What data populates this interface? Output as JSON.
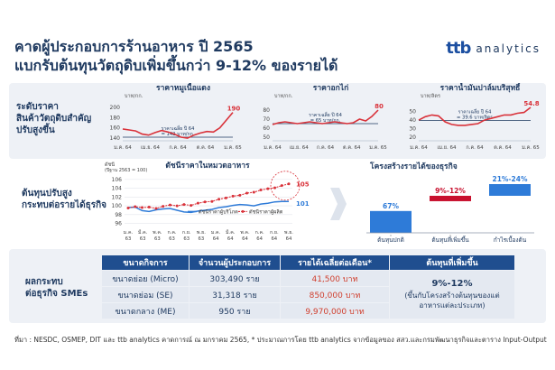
{
  "header": {
    "title_line1": "คาดผู้ประกอบการร้านอาหาร ปี 2565",
    "title_line2": "แบกรับต้นทุนวัตถุดิบเพิ่มขึ้นกว่า 9-12% ของรายได้",
    "logo_text": "ttb",
    "logo_word": "analytics"
  },
  "section1": {
    "label_lines": [
      "ระดับราคา",
      "สินค้าวัตถุดิบสำคัญ",
      "ปรับสูงขึ้น"
    ]
  },
  "section2": {
    "label_lines": [
      "ต้นทุนปรับสูง",
      "กระทบต่อรายได้ธุรกิจ"
    ]
  },
  "section3": {
    "label_lines": [
      "ผลกระทบ",
      "ต่อธุรกิจ SMEs"
    ]
  },
  "colors": {
    "red": "#d9323a",
    "blue": "#2e7bd8",
    "navy": "#1f4e8f",
    "band": "#eef1f6"
  },
  "chart_data": [
    {
      "type": "line",
      "title": "ราคาหมูเนื้อแดง",
      "unit": "บาท/กก.",
      "x_ticks": [
        "ม.ค. 64",
        "เม.ย. 64",
        "ก.ค. 64",
        "ต.ค. 64",
        "ม.ค. 65"
      ],
      "y_ticks": [
        140,
        160,
        180,
        200
      ],
      "ylim": [
        135,
        205
      ],
      "values": [
        158,
        156,
        154,
        148,
        146,
        151,
        155,
        152,
        148,
        142,
        140,
        146,
        150,
        153,
        152,
        160,
        175,
        190
      ],
      "end_label": "190",
      "ref_line": {
        "value": 142,
        "label_lines": [
          "ราคาเฉลี่ย ปี 64",
          "= 142 บาท/กก."
        ]
      }
    },
    {
      "type": "line",
      "title": "ราคาอกไก่",
      "unit": "บาท/กก.",
      "x_ticks": [
        "ม.ค. 64",
        "เม.ย. 64",
        "ก.ค. 64",
        "ต.ค. 64",
        "ม.ค. 65"
      ],
      "y_ticks": [
        50,
        60,
        70,
        80
      ],
      "ylim": [
        46,
        86
      ],
      "values": [
        64,
        66,
        67,
        66,
        65,
        66,
        67,
        66,
        65,
        66,
        67,
        66,
        65,
        66,
        70,
        68,
        73,
        80
      ],
      "end_label": "80",
      "ref_line": {
        "value": 65,
        "label_lines": [
          "ราคาเฉลี่ย ปี 64",
          "= 65 บาท/กก."
        ]
      }
    },
    {
      "type": "line",
      "title": "ราคาน้ำมันปาล์มบริสุทธิ์",
      "unit": "บาท/ลิตร",
      "x_ticks": [
        "ม.ค. 64",
        "เม.ย. 64",
        "ก.ค. 64",
        "ต.ค. 64",
        "ม.ค. 65"
      ],
      "y_ticks": [
        20,
        30,
        40,
        50
      ],
      "ylim": [
        16,
        58
      ],
      "values": [
        40,
        44,
        46,
        45,
        38,
        35,
        34,
        34,
        35,
        36,
        40,
        42,
        44,
        46,
        46,
        48,
        49,
        54.8
      ],
      "end_label": "54.8",
      "ref_line": {
        "value": 39.6,
        "label_lines": [
          "ราคาเฉลี่ย ปี 64",
          "= 39.6 บาท/ลิตร"
        ]
      }
    },
    {
      "type": "line",
      "title": "ดัชนีราคาในหมวดอาหาร",
      "y_axis_caption": [
        "ดัชนี",
        "(ปีฐาน 2563 = 100)"
      ],
      "x_ticks": [
        "ม.ค. 63",
        "มี.ค. 63",
        "พ.ค. 63",
        "ก.ค. 63",
        "ก.ย. 63",
        "พ.ย. 63",
        "ม.ค. 64",
        "มี.ค. 64",
        "พ.ค. 64",
        "ก.ค. 64",
        "ก.ย. 64",
        "พ.ย. 64"
      ],
      "y_ticks": [
        96,
        98,
        100,
        102,
        104,
        106
      ],
      "ylim": [
        95.5,
        107
      ],
      "series": [
        {
          "name": "ดัชนีราคาผู้บริโภค",
          "color": "#2e7bd8",
          "values": [
            99.6,
            99.7,
            98.9,
            98.7,
            99.1,
            99.3,
            99.4,
            99.0,
            98.6,
            98.5,
            98.8,
            99.0,
            99.2,
            99.6,
            99.8,
            100.1,
            100.3,
            100.2,
            100.0,
            100.4,
            100.6,
            100.9,
            101.0,
            101.0
          ]
        },
        {
          "name": "ดัชนีราคาผู้ผลิต",
          "color": "#d9323a",
          "values": [
            99.5,
            99.8,
            99.6,
            99.7,
            99.4,
            99.9,
            100.2,
            100.0,
            100.3,
            100.1,
            100.6,
            100.9,
            101.0,
            101.5,
            101.8,
            102.2,
            102.4,
            102.9,
            103.1,
            103.6,
            103.9,
            104.1,
            104.6,
            105.0
          ]
        }
      ],
      "end_labels": [
        "101",
        "105"
      ]
    },
    {
      "type": "bar",
      "title": "โครงสร้างรายได้ของธุรกิจ",
      "categories": [
        "ต้นทุนปกติ",
        "ต้นทุนที่เพิ่มขึ้น",
        "กำไรเบื้องต้น"
      ],
      "value_labels": [
        "67%",
        "9%-12%",
        "21%-24%"
      ],
      "start": [
        0,
        67,
        76
      ],
      "end": [
        67,
        76,
        100
      ],
      "colors": [
        "#2e7bd8",
        "#c8102e",
        "#2e7bd8"
      ]
    }
  ],
  "table": {
    "headers": [
      "ขนาดกิจการ",
      "จำนวนผู้ประกอบการ",
      "รายได้เฉลี่ยต่อเดือน*",
      "ต้นทุนที่เพิ่มขึ้น"
    ],
    "rows": [
      [
        "ขนาดย่อย (Micro)",
        "303,490 ราย",
        "41,500 บาท"
      ],
      [
        "ขนาดย่อม (SE)",
        "31,318 ราย",
        "850,000 บาท"
      ],
      [
        "ขนาดกลาง (ME)",
        "950 ราย",
        "9,970,000 บาท"
      ]
    ],
    "merged_value": "9%-12%",
    "merged_note_lines": [
      "(ขึ้นกับโครงสร้างต้นทุนของแต่",
      "อาหารแต่ละประเภท)"
    ]
  },
  "source": "ที่มา : NESDC, OSMEP, DIT และ ttb  analytics คาดการณ์ ณ มกราคม 2565, * ประมาณการโดย ttb analytics จากข้อมูลของ สสว.และกรมพัฒนาธุรกิจและตาราง Input-Output"
}
